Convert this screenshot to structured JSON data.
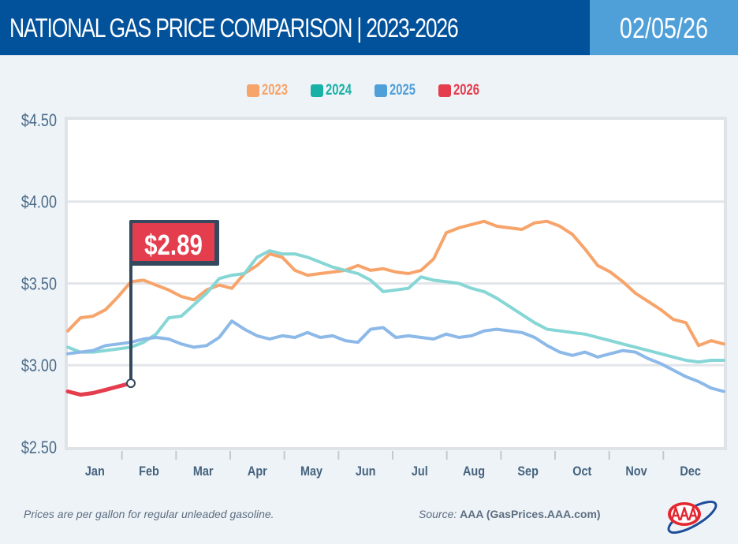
{
  "header": {
    "title": "NATIONAL GAS PRICE COMPARISON | 2023-2026",
    "date": "02/05/26"
  },
  "colors": {
    "header_bg": "#02519b",
    "date_bg": "#4f9fd8",
    "page_bg": "#eef3f8"
  },
  "footer": {
    "note": "Prices are per gallon for regular unleaded gasoline.",
    "source_label": "Source:",
    "source_value": "AAA (GasPrices.AAA.com)",
    "logo_text": "AAA"
  },
  "chart_data": {
    "type": "line",
    "title": "NATIONAL GAS PRICE COMPARISON | 2023-2026",
    "xlabel": "",
    "ylabel": "",
    "x_unit": "week of year",
    "xlim": [
      0,
      52
    ],
    "ylim": [
      2.5,
      4.5
    ],
    "grid": true,
    "legend_position": "top-center",
    "yticks": [
      4.5,
      4.0,
      3.5,
      3.0,
      2.5
    ],
    "ytick_labels": [
      "$4.50",
      "$4.00",
      "$3.50",
      "$3.00",
      "$2.50"
    ],
    "xtick_labels": [
      "Jan",
      "Feb",
      "Mar",
      "Apr",
      "May",
      "Jun",
      "Jul",
      "Aug",
      "Sep",
      "Oct",
      "Nov",
      "Dec"
    ],
    "annotation": {
      "label": "$2.89",
      "series": "2026",
      "x": 5,
      "y": 2.89
    },
    "series": [
      {
        "name": "2023",
        "color": "#f7a46b",
        "values": [
          3.21,
          3.29,
          3.3,
          3.34,
          3.42,
          3.51,
          3.52,
          3.49,
          3.46,
          3.42,
          3.4,
          3.46,
          3.49,
          3.47,
          3.56,
          3.61,
          3.68,
          3.66,
          3.58,
          3.55,
          3.56,
          3.57,
          3.58,
          3.61,
          3.58,
          3.59,
          3.57,
          3.56,
          3.58,
          3.65,
          3.81,
          3.84,
          3.86,
          3.88,
          3.85,
          3.84,
          3.83,
          3.87,
          3.88,
          3.85,
          3.8,
          3.71,
          3.61,
          3.57,
          3.51,
          3.44,
          3.39,
          3.34,
          3.28,
          3.26,
          3.12,
          3.15,
          3.13
        ]
      },
      {
        "name": "2024",
        "color": "#17b1a6",
        "line_color": "#86d6d6",
        "values": [
          3.11,
          3.08,
          3.08,
          3.09,
          3.1,
          3.11,
          3.14,
          3.19,
          3.29,
          3.3,
          3.37,
          3.44,
          3.53,
          3.55,
          3.56,
          3.66,
          3.7,
          3.68,
          3.68,
          3.66,
          3.63,
          3.6,
          3.58,
          3.56,
          3.52,
          3.45,
          3.46,
          3.47,
          3.54,
          3.52,
          3.51,
          3.5,
          3.47,
          3.45,
          3.41,
          3.36,
          3.31,
          3.26,
          3.22,
          3.21,
          3.2,
          3.19,
          3.17,
          3.15,
          3.13,
          3.11,
          3.09,
          3.07,
          3.05,
          3.03,
          3.02,
          3.03,
          3.03
        ]
      },
      {
        "name": "2025",
        "color": "#4f9fd8",
        "line_color": "#8cb9e8",
        "values": [
          3.07,
          3.08,
          3.09,
          3.12,
          3.13,
          3.14,
          3.16,
          3.17,
          3.16,
          3.13,
          3.11,
          3.12,
          3.17,
          3.27,
          3.22,
          3.18,
          3.16,
          3.18,
          3.17,
          3.2,
          3.17,
          3.18,
          3.15,
          3.14,
          3.22,
          3.23,
          3.17,
          3.18,
          3.17,
          3.16,
          3.19,
          3.17,
          3.18,
          3.21,
          3.22,
          3.21,
          3.2,
          3.17,
          3.12,
          3.08,
          3.06,
          3.08,
          3.05,
          3.07,
          3.09,
          3.08,
          3.04,
          3.01,
          2.97,
          2.93,
          2.9,
          2.86,
          2.84
        ]
      },
      {
        "name": "2026",
        "color": "#e43d4d",
        "values": [
          2.84,
          2.82,
          2.83,
          2.85,
          2.87,
          2.89
        ]
      }
    ]
  }
}
